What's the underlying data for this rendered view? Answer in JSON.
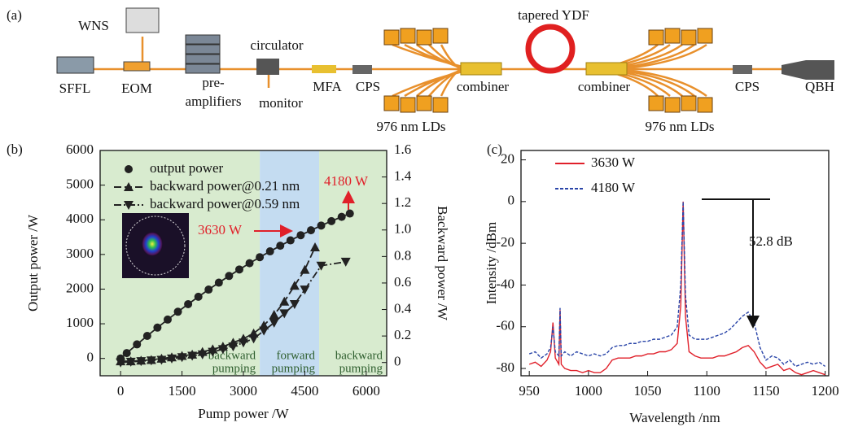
{
  "diagram": {
    "panel_label": "(a)",
    "labels": {
      "wns": "WNS",
      "sffl": "SFFL",
      "eom": "EOM",
      "preamp": [
        "pre-",
        "amplifiers"
      ],
      "circulator": "circulator",
      "monitor": "monitor",
      "mfa": "MFA",
      "cps1": "CPS",
      "lds1": "976 nm LDs",
      "combiner1": "combiner",
      "ydf": "tapered YDF",
      "combiner2": "combiner",
      "lds2": "976 nm LDs",
      "cps2": "CPS",
      "qbh": "QBH"
    }
  },
  "chart_data": [
    {
      "type": "line",
      "panel_label": "(b)",
      "xlabel": "Pump power /W",
      "ylabel": "Output power /W",
      "y2label": "Backward power /W",
      "xlim": [
        -500,
        6500
      ],
      "xticks": [
        0,
        1500,
        3000,
        4500,
        6000
      ],
      "ylim": [
        -500,
        6000
      ],
      "yticks": [
        0,
        1000,
        2000,
        3000,
        4000,
        5000,
        6000
      ],
      "y2lim": [
        -0.1,
        1.6
      ],
      "y2ticks": [
        0,
        0.2,
        0.4,
        0.6,
        0.8,
        {
          "value": 1,
          "label": "1.0"
        },
        1.2,
        1.4,
        1.6
      ],
      "legend": "upper left",
      "regions": [
        {
          "from": -500,
          "to": 3400,
          "color": "#d8ebcf",
          "lines": [
            "backward",
            "pumping"
          ]
        },
        {
          "from": 3400,
          "to": 4850,
          "color": "#c4dcf1",
          "lines": [
            "forward",
            "pumping"
          ]
        },
        {
          "from": 4850,
          "to": 6500,
          "color": "#d8ebcf",
          "lines": [
            "backward",
            "pumping"
          ]
        }
      ],
      "annotations": [
        "3630 W",
        "4180 W"
      ],
      "series": [
        {
          "name": "output power",
          "color": "#222222",
          "marker": "circle",
          "dash": "none",
          "x": [
            0,
            150,
            400,
            650,
            900,
            1150,
            1400,
            1650,
            1900,
            2150,
            2400,
            2650,
            2900,
            3150,
            3400,
            3650,
            3900,
            4150,
            4400,
            4650,
            4900,
            5150,
            5400,
            5600
          ],
          "values": [
            0,
            154,
            405,
            650,
            889,
            1121,
            1347,
            1566,
            1779,
            1986,
            2186,
            2379,
            2566,
            2747,
            2921,
            3089,
            3251,
            3406,
            3555,
            3697,
            3833,
            3962,
            4085,
            4180
          ]
        },
        {
          "name": "backward power@0.21 nm",
          "color": "#222222",
          "marker": "triangle-up",
          "dash": "9 4",
          "axis": "y2",
          "x": [
            0,
            250,
            500,
            750,
            1000,
            1250,
            1500,
            1750,
            2000,
            2250,
            2500,
            2750,
            3000,
            3250,
            3500,
            3750,
            4000,
            4250,
            4500,
            4750
          ],
          "values": [
            0.01,
            0.01,
            0.015,
            0.02,
            0.03,
            0.04,
            0.05,
            0.06,
            0.08,
            0.1,
            0.12,
            0.15,
            0.18,
            0.22,
            0.28,
            0.36,
            0.46,
            0.58,
            0.7,
            0.87
          ]
        },
        {
          "name": "backward power@0.59 nm",
          "color": "#222222",
          "marker": "triangle-down",
          "dash": "9 3 2 3",
          "axis": "y2",
          "x": [
            0,
            250,
            500,
            750,
            1000,
            1250,
            1500,
            1750,
            2000,
            2250,
            2500,
            2750,
            3000,
            3250,
            3500,
            3750,
            4000,
            4250,
            4500,
            4900,
            5500
          ],
          "values": [
            0,
            0.005,
            0.01,
            0.015,
            0.02,
            0.03,
            0.04,
            0.05,
            0.06,
            0.08,
            0.1,
            0.12,
            0.15,
            0.18,
            0.24,
            0.3,
            0.37,
            0.44,
            0.55,
            0.73,
            0.76
          ]
        }
      ]
    },
    {
      "type": "line",
      "panel_label": "(c)",
      "xlabel": "Wavelength /nm",
      "ylabel": "Intensity /dBm",
      "xlim": [
        943,
        1203
      ],
      "xticks": [
        950,
        1000,
        1050,
        1100,
        1150,
        1200
      ],
      "ylim": [
        -83.5,
        24.5
      ],
      "yticks": [
        20,
        0,
        -20,
        -40,
        -60,
        -80
      ],
      "legend": "upper left",
      "annotations": [
        "52.8 dB"
      ],
      "x": [
        950,
        955,
        960,
        965,
        968,
        970,
        972,
        975,
        976,
        977,
        980,
        985,
        990,
        995,
        1000,
        1005,
        1010,
        1015,
        1020,
        1025,
        1030,
        1035,
        1040,
        1045,
        1050,
        1055,
        1060,
        1065,
        1070,
        1075,
        1078,
        1080,
        1082,
        1085,
        1090,
        1095,
        1100,
        1105,
        1110,
        1115,
        1120,
        1125,
        1130,
        1135,
        1140,
        1145,
        1150,
        1155,
        1160,
        1165,
        1170,
        1175,
        1180,
        1185,
        1190,
        1195,
        1200
      ],
      "series": [
        {
          "name": "3630 W",
          "color": "#e0202a",
          "dash": "none",
          "values": [
            -78,
            -77,
            -79,
            -76,
            -72,
            -58,
            -75,
            -78,
            -52,
            -78,
            -80,
            -81,
            -81,
            -82,
            -81,
            -82,
            -82,
            -80,
            -76,
            -75,
            -75,
            -75,
            -74,
            -74,
            -73,
            -73,
            -72,
            -72,
            -71,
            -68,
            -50,
            0,
            -55,
            -72,
            -74,
            -75,
            -75,
            -75,
            -74,
            -74,
            -73,
            -72,
            -70,
            -69,
            -72,
            -77,
            -80,
            -79,
            -78,
            -81,
            -80,
            -82,
            -83,
            -82,
            -81,
            -82,
            -83
          ]
        },
        {
          "name": "4180 W",
          "color": "#2a45a8",
          "dash": "4 2",
          "values": [
            -73,
            -72,
            -75,
            -73,
            -70,
            -60,
            -72,
            -74,
            -51,
            -74,
            -72,
            -74,
            -72,
            -73,
            -74,
            -73,
            -74,
            -73,
            -70,
            -69,
            -69,
            -68,
            -68,
            -67,
            -67,
            -66,
            -66,
            -65,
            -64,
            -60,
            -40,
            0,
            -45,
            -64,
            -66,
            -66,
            -66,
            -65,
            -64,
            -63,
            -61,
            -58,
            -55,
            -53,
            -58,
            -70,
            -76,
            -74,
            -75,
            -78,
            -76,
            -79,
            -78,
            -77,
            -78,
            -77,
            -79
          ]
        }
      ]
    }
  ]
}
